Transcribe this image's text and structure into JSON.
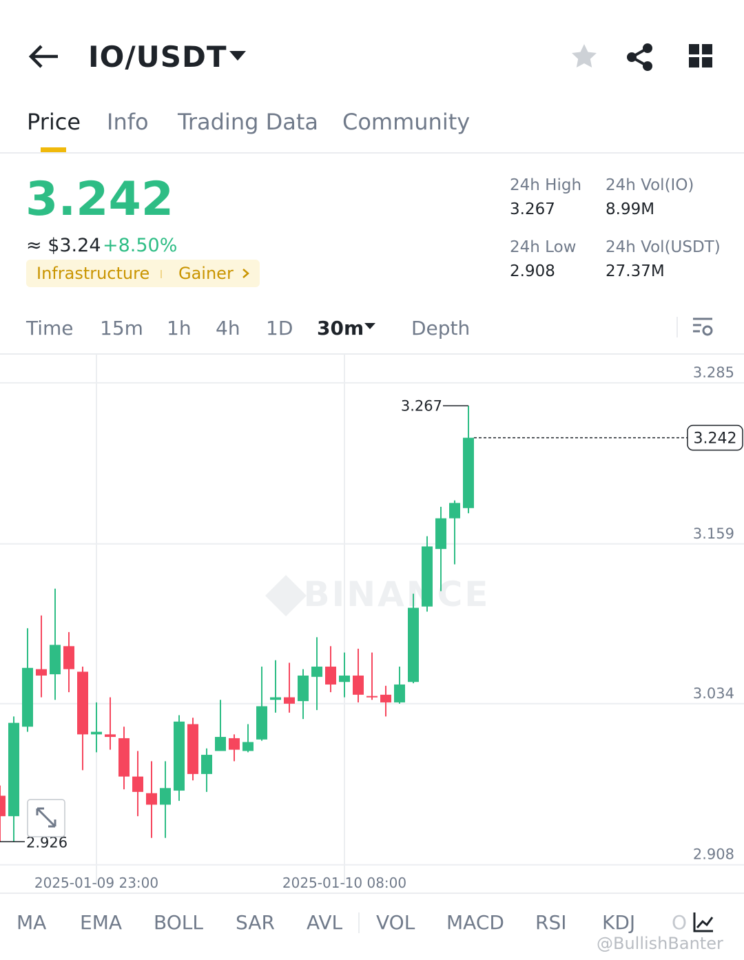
{
  "header": {
    "pair": "IO/USDT"
  },
  "tabs": [
    "Price",
    "Info",
    "Trading Data",
    "Community"
  ],
  "ticker": {
    "price": "3.242",
    "usd_price": "≈ $3.24",
    "change": "+8.50%",
    "tags": [
      "Infrastructure",
      "Gainer"
    ],
    "stats": [
      {
        "label": "24h High",
        "value": "3.267"
      },
      {
        "label": "24h Vol(IO)",
        "value": "8.99M"
      },
      {
        "label": "24h Low",
        "value": "2.908"
      },
      {
        "label": "24h Vol(USDT)",
        "value": "27.37M"
      }
    ]
  },
  "intervals": [
    "Time",
    "15m",
    "1h",
    "4h",
    "1D",
    "30m",
    "Depth"
  ],
  "chart_data": {
    "type": "candlestick",
    "categories": [
      null,
      null,
      null,
      null,
      null,
      null,
      null,
      "2025-01-09 23:00",
      null,
      null,
      null,
      null,
      null,
      null,
      null,
      null,
      null,
      null,
      null,
      null,
      null,
      null,
      null,
      null,
      null,
      "2025-01-10 08:00",
      null,
      null,
      null,
      null,
      null,
      null,
      null,
      null,
      null
    ],
    "open": [
      2.962,
      2.946,
      3.016,
      3.061,
      3.057,
      3.079,
      3.059,
      3.01,
      3.01,
      3.007,
      2.977,
      2.964,
      2.955,
      2.966,
      3.018,
      2.979,
      2.997,
      3.007,
      2.997,
      3.006,
      3.037,
      3.039,
      3.036,
      3.055,
      3.063,
      3.051,
      3.056,
      3.04,
      3.041,
      3.035,
      3.051,
      3.11,
      3.155,
      3.179,
      3.187
    ],
    "high": [
      2.97,
      3.024,
      3.093,
      3.103,
      3.124,
      3.09,
      3.063,
      3.035,
      3.039,
      3.016,
      2.997,
      2.989,
      2.989,
      3.025,
      3.023,
      2.999,
      3.037,
      3.01,
      3.018,
      3.063,
      3.068,
      3.066,
      3.061,
      3.086,
      3.079,
      3.074,
      3.077,
      3.074,
      3.048,
      3.063,
      3.12,
      3.165,
      3.188,
      3.193,
      3.267
    ],
    "low": [
      2.926,
      2.926,
      3.012,
      3.039,
      3.037,
      3.043,
      2.982,
      2.996,
      2.998,
      2.967,
      2.946,
      2.929,
      2.929,
      2.958,
      2.974,
      2.965,
      2.997,
      2.989,
      2.996,
      3.005,
      3.027,
      3.027,
      3.022,
      3.029,
      3.043,
      3.039,
      3.035,
      3.037,
      3.024,
      3.034,
      3.05,
      3.106,
      3.122,
      3.143,
      3.183
    ],
    "close": [
      2.946,
      3.019,
      3.062,
      3.056,
      3.08,
      3.061,
      3.01,
      3.012,
      3.008,
      2.977,
      2.965,
      2.955,
      2.968,
      3.02,
      2.979,
      2.994,
      3.008,
      2.998,
      3.004,
      3.032,
      3.039,
      3.034,
      3.056,
      3.063,
      3.049,
      3.056,
      3.041,
      3.039,
      3.035,
      3.049,
      3.109,
      3.157,
      3.179,
      3.191,
      3.242
    ],
    "up_color": "#2ebd85",
    "down_color": "#f6465d",
    "ylim": [
      2.903,
      3.307
    ],
    "yticks": [
      2.908,
      3.034,
      3.159,
      3.285
    ],
    "grid": true,
    "last_price": 3.242,
    "max_marker": 3.267,
    "min_marker": 2.926,
    "watermark": "BINANCE"
  },
  "indicators": [
    "MA",
    "EMA",
    "BOLL",
    "SAR",
    "AVL",
    "VOL",
    "MACD",
    "RSI",
    "KDJ",
    "O"
  ],
  "footer": {
    "credit": "@BullishBanter"
  }
}
